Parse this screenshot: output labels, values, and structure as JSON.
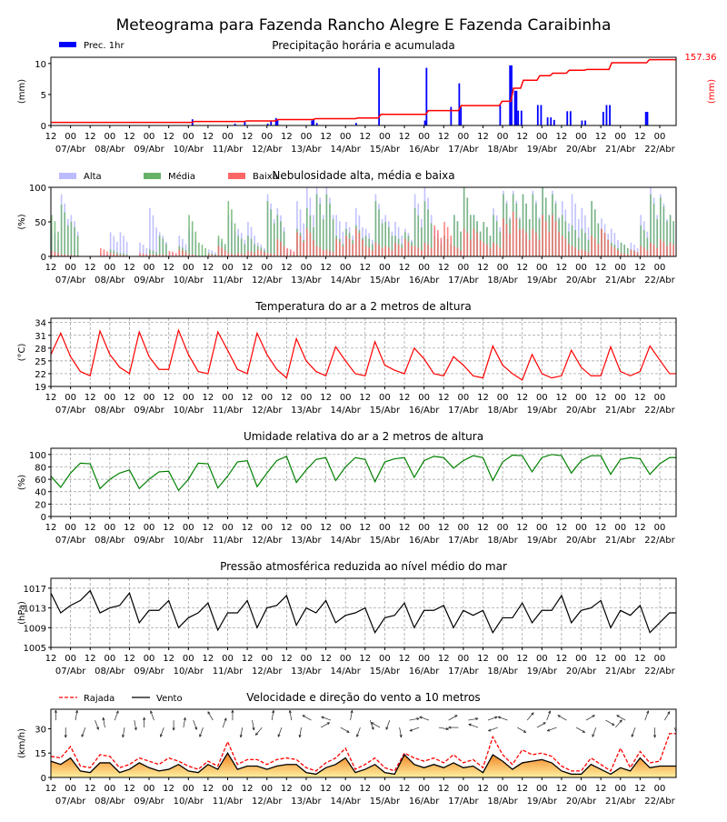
{
  "title": "Meteograma para Fazenda Rancho Alegre E Fazenda Caraibinha",
  "time_axis": {
    "hour_labels": [
      "12",
      "00",
      "12",
      "00",
      "12",
      "00",
      "12",
      "00",
      "12",
      "00",
      "12",
      "00",
      "12",
      "00",
      "12",
      "00",
      "12",
      "00",
      "12",
      "00",
      "12",
      "00",
      "12",
      "00",
      "12",
      "00",
      "12",
      "00",
      "12",
      "00",
      "12",
      "00"
    ],
    "date_labels": [
      "07/Abr",
      "08/Abr",
      "09/Abr",
      "10/Abr",
      "11/Abr",
      "12/Abr",
      "13/Abr",
      "14/Abr",
      "15/Abr",
      "16/Abr",
      "17/Abr",
      "18/Abr",
      "19/Abr",
      "20/Abr",
      "21/Abr",
      "22/Abr"
    ],
    "start": "06/Abr 12h",
    "end": "22/Abr 10h",
    "step_hours": 6
  },
  "chart_data": [
    {
      "type": "bar",
      "title": "Precipitação horária e acumulada",
      "ylabel": "(mm)",
      "ylabel_right": "(mm)",
      "ylim": [
        0,
        11
      ],
      "yticks": [
        0,
        5,
        10
      ],
      "legend": [
        {
          "name": "Prec. 1hr",
          "color": "#0000ff"
        }
      ],
      "legend_position": "top-left",
      "accumulated_label": "157.36",
      "accumulated_color": "#ff0000",
      "accumulated_ylim": [
        0,
        163
      ],
      "hourly_bars": [
        [
          "10/Abr 02h",
          1.0
        ],
        [
          "11/Abr 04h",
          0.3
        ],
        [
          "11/Abr 10h",
          0.6
        ],
        [
          "12/Abr 00h",
          0.3
        ],
        [
          "12/Abr 02h",
          0.8
        ],
        [
          "12/Abr 05h",
          1.2
        ],
        [
          "12/Abr 06h",
          1.0
        ],
        [
          "13/Abr 03h",
          0.8
        ],
        [
          "13/Abr 04h",
          1.0
        ],
        [
          "13/Abr 06h",
          0.4
        ],
        [
          "14/Abr 06h",
          0.4
        ],
        [
          "14/Abr 20h",
          9.3
        ],
        [
          "16/Abr 00h",
          0.8
        ],
        [
          "16/Abr 01h",
          9.3
        ],
        [
          "16/Abr 16h",
          3.0
        ],
        [
          "16/Abr 21h",
          6.8
        ],
        [
          "16/Abr 22h",
          3.0
        ],
        [
          "17/Abr 22h",
          3.3
        ],
        [
          "18/Abr 04h",
          9.7
        ],
        [
          "18/Abr 05h",
          9.7
        ],
        [
          "18/Abr 07h",
          5.6
        ],
        [
          "18/Abr 08h",
          5.6
        ],
        [
          "18/Abr 09h",
          2.4
        ],
        [
          "18/Abr 11h",
          2.4
        ],
        [
          "18/Abr 21h",
          3.3
        ],
        [
          "18/Abr 23h",
          3.3
        ],
        [
          "19/Abr 03h",
          1.3
        ],
        [
          "19/Abr 05h",
          1.3
        ],
        [
          "19/Abr 07h",
          0.9
        ],
        [
          "19/Abr 15h",
          2.3
        ],
        [
          "19/Abr 17h",
          2.3
        ],
        [
          "20/Abr 00h",
          0.8
        ],
        [
          "20/Abr 02h",
          0.8
        ],
        [
          "20/Abr 13h",
          2.2
        ],
        [
          "20/Abr 15h",
          3.3
        ],
        [
          "20/Abr 17h",
          3.3
        ],
        [
          "21/Abr 15h",
          2.2
        ],
        [
          "21/Abr 16h",
          2.2
        ]
      ],
      "accumulated": [
        [
          "06/Abr 12h",
          7.4
        ],
        [
          "10/Abr 02h",
          9.6
        ],
        [
          "11/Abr 10h",
          11
        ],
        [
          "12/Abr 05h",
          14
        ],
        [
          "13/Abr 04h",
          16.3
        ],
        [
          "14/Abr 06h",
          17.8
        ],
        [
          "14/Abr 20h",
          26.7
        ],
        [
          "16/Abr 01h",
          35.6
        ],
        [
          "16/Abr 21h",
          47.5
        ],
        [
          "17/Abr 22h",
          58
        ],
        [
          "18/Abr 05h",
          89
        ],
        [
          "18/Abr 11h",
          108
        ],
        [
          "18/Abr 21h",
          119
        ],
        [
          "19/Abr 05h",
          125
        ],
        [
          "19/Abr 15h",
          132
        ],
        [
          "20/Abr 02h",
          134
        ],
        [
          "20/Abr 17h",
          150
        ],
        [
          "21/Abr 16h",
          157.36
        ],
        [
          "22/Abr 10h",
          157.36
        ]
      ]
    },
    {
      "type": "bar",
      "title": "Nebulosidade alta, média e baixa",
      "ylabel": "(%)",
      "ylim": [
        0,
        100
      ],
      "yticks": [
        0,
        50,
        100
      ],
      "legend_position": "top-left",
      "series": [
        {
          "name": "Alta",
          "color": "#bbbbff",
          "values": [
            40,
            90,
            60,
            0,
            0,
            5,
            35,
            35,
            0,
            20,
            70,
            35,
            5,
            30,
            40,
            0,
            10,
            25,
            60,
            40,
            50,
            20,
            90,
            70,
            10,
            80,
            100,
            100,
            100,
            60,
            50,
            70,
            40,
            90,
            60,
            50,
            40,
            90,
            100,
            40,
            30,
            60,
            100,
            60,
            50,
            70,
            95,
            95,
            90,
            95,
            100,
            95,
            80,
            90,
            70,
            80,
            55,
            40,
            20,
            20,
            60,
            100,
            90,
            60
          ]
        },
        {
          "name": "Média",
          "color": "#66b266",
          "values": [
            60,
            75,
            50,
            0,
            0,
            0,
            10,
            5,
            0,
            0,
            10,
            30,
            0,
            15,
            60,
            20,
            5,
            30,
            80,
            30,
            30,
            15,
            80,
            60,
            5,
            40,
            70,
            90,
            90,
            30,
            40,
            45,
            30,
            80,
            50,
            30,
            35,
            70,
            80,
            30,
            30,
            60,
            100,
            60,
            50,
            60,
            90,
            90,
            90,
            90,
            100,
            90,
            60,
            45,
            40,
            80,
            40,
            20,
            20,
            10,
            45,
            90,
            85,
            60
          ]
        },
        {
          "name": "Baixa",
          "color": "#ff6666",
          "values": [
            8,
            3,
            2,
            0,
            0,
            12,
            5,
            2,
            0,
            5,
            3,
            3,
            8,
            10,
            3,
            0,
            3,
            15,
            5,
            5,
            8,
            10,
            5,
            25,
            12,
            35,
            40,
            15,
            10,
            25,
            30,
            40,
            15,
            20,
            15,
            20,
            25,
            15,
            20,
            45,
            50,
            15,
            40,
            40,
            20,
            20,
            55,
            65,
            40,
            40,
            60,
            60,
            30,
            15,
            10,
            30,
            40,
            15,
            5,
            10,
            15,
            20,
            25,
            20
          ]
        }
      ]
    },
    {
      "type": "line",
      "title": "Temperatura do ar a 2 metros de altura",
      "ylabel": "(°C)",
      "ylim": [
        19,
        35
      ],
      "yticks": [
        19,
        22,
        25,
        28,
        31,
        34
      ],
      "grid": true,
      "color": "#ff0000",
      "values": [
        26.5,
        31.5,
        26,
        22.5,
        21.5,
        32,
        26.5,
        23.5,
        22,
        31.8,
        26,
        23,
        23,
        32.2,
        26.5,
        22.5,
        22,
        31.8,
        27.5,
        23,
        22,
        31.5,
        26.5,
        23,
        21,
        30.2,
        25,
        22.5,
        21.5,
        28.3,
        25,
        22,
        21.5,
        29.5,
        24,
        22.8,
        22,
        28,
        25.5,
        22,
        21.5,
        26,
        24,
        21.5,
        21,
        28.5,
        24,
        22,
        20.5,
        26.5,
        22,
        21,
        21.5,
        27.5,
        23.5,
        21.5,
        21.5,
        28.3,
        22.5,
        21.5,
        22.5,
        28.5,
        25.2,
        22
      ]
    },
    {
      "type": "line",
      "title": "Umidade relativa do ar a 2 metros de altura",
      "ylabel": "(%)",
      "ylim": [
        0,
        110
      ],
      "yticks": [
        0,
        20,
        40,
        60,
        80,
        100
      ],
      "grid": true,
      "color": "#008000",
      "values": [
        65,
        47,
        70,
        86,
        85,
        45,
        60,
        70,
        75,
        45,
        60,
        72,
        73,
        42,
        60,
        86,
        85,
        46,
        65,
        88,
        90,
        48,
        70,
        90,
        97,
        55,
        75,
        92,
        95,
        58,
        80,
        95,
        92,
        56,
        88,
        93,
        95,
        63,
        90,
        97,
        95,
        78,
        90,
        98,
        95,
        58,
        88,
        99,
        98,
        72,
        95,
        100,
        98,
        70,
        90,
        98,
        98,
        68,
        92,
        95,
        93,
        68,
        85,
        95
      ]
    },
    {
      "type": "line",
      "title": "Pressão atmosférica reduzida ao nível médio do mar",
      "ylabel": "(hPa)",
      "ylim": [
        1005,
        1019
      ],
      "yticks": [
        1005,
        1009,
        1013,
        1017
      ],
      "grid": true,
      "color": "#000000",
      "values": [
        1016,
        1012,
        1013.5,
        1014.5,
        1016.5,
        1012,
        1013,
        1013.5,
        1016,
        1010,
        1012.5,
        1012.5,
        1014.5,
        1009,
        1011,
        1012,
        1014,
        1008.5,
        1012,
        1012,
        1014.5,
        1009,
        1013,
        1013.5,
        1015.5,
        1009.5,
        1013,
        1012,
        1014.5,
        1010,
        1011.5,
        1012,
        1013,
        1008,
        1011,
        1011.5,
        1014,
        1009,
        1012.5,
        1012.5,
        1013.5,
        1009,
        1012.5,
        1011.5,
        1012.5,
        1008,
        1011,
        1011,
        1014,
        1010,
        1012.5,
        1012.5,
        1015.5,
        1010,
        1012.5,
        1013,
        1014.5,
        1009,
        1012.5,
        1011.5,
        1013.5,
        1008,
        1010,
        1012
      ]
    },
    {
      "type": "line",
      "title": "Velocidade e direção do vento a 10 metros",
      "ylabel": "(km/h)",
      "ylim": [
        0,
        42
      ],
      "yticks": [
        0,
        15,
        30
      ],
      "legend_position": "top-left",
      "series": [
        {
          "name": "Rajada",
          "color": "#ff0000",
          "style": "dashed",
          "values": [
            13,
            12,
            19,
            7,
            6,
            14,
            13,
            6,
            8,
            12,
            10,
            8,
            12,
            10,
            7,
            5,
            10,
            7,
            22,
            8,
            11,
            11,
            8,
            11,
            12,
            11,
            6,
            4,
            9,
            12,
            18,
            5,
            8,
            12,
            6,
            4,
            15,
            12,
            10,
            12,
            9,
            14,
            9,
            11,
            6,
            25,
            14,
            8,
            17,
            14,
            15,
            13,
            7,
            4,
            4,
            12,
            8,
            4,
            18,
            6,
            16,
            9,
            10,
            27
          ]
        },
        {
          "name": "Vento",
          "color": "#000000",
          "style": "solid",
          "values": [
            10,
            8,
            12,
            4,
            3,
            9,
            9,
            3,
            5,
            9,
            6,
            4,
            5,
            8,
            4,
            3,
            8,
            5,
            15,
            5,
            7,
            7,
            5,
            7,
            8,
            8,
            3,
            2,
            6,
            8,
            12,
            3,
            5,
            8,
            3,
            2,
            14,
            8,
            6,
            8,
            6,
            9,
            6,
            7,
            3,
            14,
            10,
            5,
            9,
            10,
            11,
            9,
            4,
            2,
            2,
            8,
            5,
            2,
            6,
            4,
            12,
            6,
            7,
            7
          ]
        }
      ],
      "direction_deg": [
        0,
        180,
        10,
        200,
        160,
        350,
        20,
        190,
        170,
        0,
        340,
        200,
        180,
        10,
        160,
        200,
        330,
        20,
        0,
        190,
        170,
        220,
        10,
        200,
        350,
        190,
        300,
        60,
        290,
        120,
        10,
        200,
        160,
        300,
        200,
        170,
        80,
        250,
        290,
        100,
        60,
        270,
        80,
        290,
        70,
        250,
        290,
        120,
        40,
        60,
        20,
        250,
        300,
        120,
        60,
        200,
        120,
        40,
        300,
        200,
        20,
        180,
        30,
        160
      ]
    }
  ]
}
